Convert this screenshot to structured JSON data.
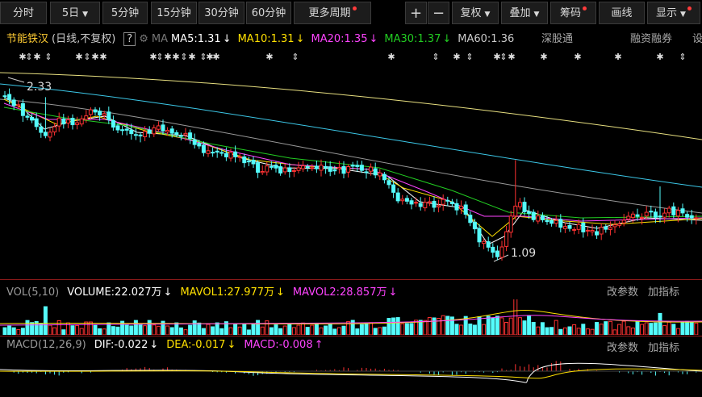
{
  "toolbar": {
    "left": [
      "分时",
      "5日",
      "5分钟",
      "15分钟",
      "30分钟",
      "60分钟",
      "更多周期"
    ],
    "zoom": [
      "+",
      "−"
    ],
    "right": [
      "复权",
      "叠加",
      "筹码",
      "画线",
      "显示"
    ]
  },
  "header": {
    "name": "节能铁汉",
    "period": "(日线,不复权)",
    "help": "?",
    "ma_label": "MA",
    "ma": [
      {
        "label": "MA5:1.31",
        "arrow": "↓"
      },
      {
        "label": "MA10:1.31",
        "arrow": "↓"
      },
      {
        "label": "MA20:1.35",
        "arrow": "↓"
      },
      {
        "label": "MA30:1.37",
        "arrow": "↓"
      },
      {
        "label": "MA60:1.36",
        "arrow": ""
      }
    ],
    "links": [
      "深股通",
      "融资融券",
      "设"
    ]
  },
  "price_labels": {
    "high": "2.33",
    "low": "1.09"
  },
  "volume": {
    "name": "VOL(5,10)",
    "items": [
      {
        "label": "VOLUME:22.027万",
        "arrow": "↓"
      },
      {
        "label": "MAVOL1:27.977万",
        "arrow": "↓"
      },
      {
        "label": "MAVOL2:28.857万",
        "arrow": "↓"
      }
    ],
    "actions": [
      "改参数",
      "加指标"
    ]
  },
  "macd": {
    "name": "MACD(12,26,9)",
    "items": [
      {
        "label": "DIF:-0.022",
        "arrow": "↓"
      },
      {
        "label": "DEA:-0.017",
        "arrow": "↓"
      },
      {
        "label": "MACD:-0.008",
        "arrow": "↑"
      }
    ],
    "actions": [
      "改参数",
      "加指标"
    ]
  }
}
